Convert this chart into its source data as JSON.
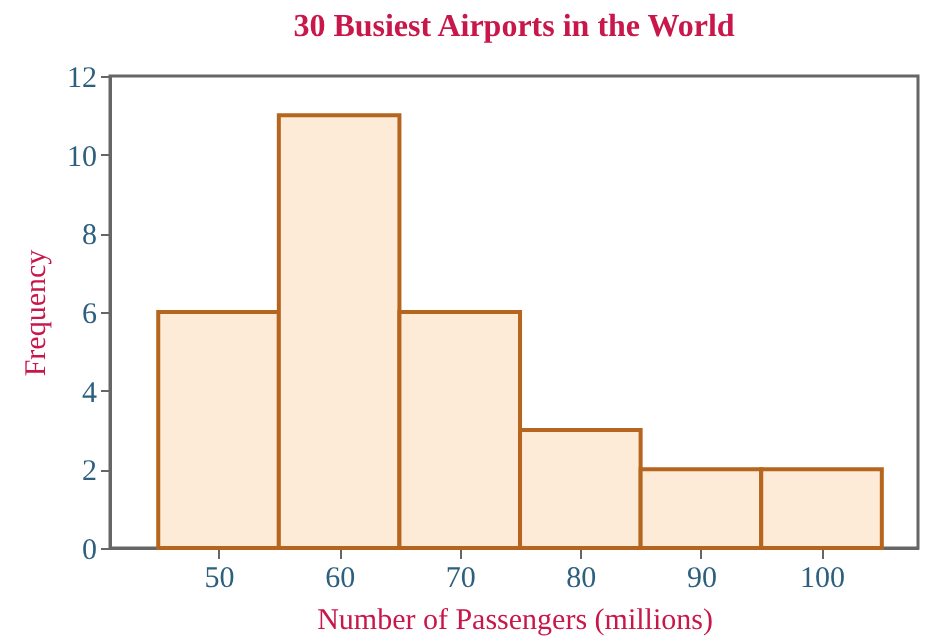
{
  "chart_data": {
    "type": "histogram",
    "title": "30 Busiest Airports in the World",
    "xlabel": "Number of Passengers (millions)",
    "ylabel": "Frequency",
    "bins": [
      45,
      55,
      65,
      75,
      85,
      95,
      105
    ],
    "values": [
      6,
      11,
      6,
      3,
      2,
      2
    ],
    "color": "#fdebd7",
    "xlim": [
      41,
      108
    ],
    "xticks": [
      50,
      60,
      70,
      80,
      90,
      100
    ],
    "ylim": [
      0,
      12
    ],
    "yticks": [
      0,
      2,
      4,
      6,
      8,
      10,
      12
    ],
    "grid": false
  }
}
